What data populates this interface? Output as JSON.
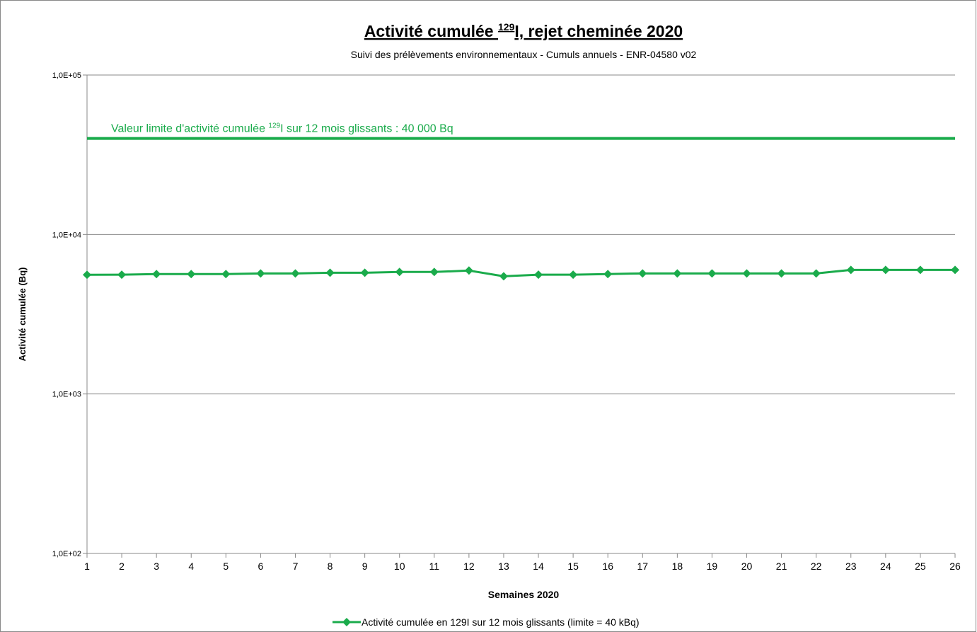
{
  "chart_data": {
    "type": "line",
    "title_parts": [
      "Activité cumulée ",
      "129",
      "I, rejet cheminée 2020"
    ],
    "subtitle": "Suivi des prélèvements environnementaux - Cumuls annuels - ENR-04580 v02",
    "x_label": "Semaines 2020",
    "y_label": "Activité cumulée (Bq)",
    "x": [
      1,
      2,
      3,
      4,
      5,
      6,
      7,
      8,
      9,
      10,
      11,
      12,
      13,
      14,
      15,
      16,
      17,
      18,
      19,
      20,
      21,
      22,
      23,
      24,
      25,
      26
    ],
    "xlim": [
      1,
      26
    ],
    "xticks": [
      1,
      2,
      3,
      4,
      5,
      6,
      7,
      8,
      9,
      10,
      11,
      12,
      13,
      14,
      15,
      16,
      17,
      18,
      19,
      20,
      21,
      22,
      23,
      24,
      25,
      26
    ],
    "ylim": [
      100,
      100000
    ],
    "log_y": true,
    "yticks": [
      {
        "value": 100,
        "label": "1,0E+02"
      },
      {
        "value": 1000,
        "label": "1,0E+03"
      },
      {
        "value": 10000,
        "label": "1,0E+04"
      },
      {
        "value": 100000,
        "label": "1,0E+05"
      }
    ],
    "grid": true,
    "legend": "bottom",
    "series": [
      {
        "name": "Activité cumulée en 129I sur 12 mois glissants (limite = 40 kBq)",
        "color": "#1aab4b",
        "values": [
          5590,
          5600,
          5650,
          5650,
          5650,
          5700,
          5700,
          5760,
          5760,
          5820,
          5820,
          5940,
          5470,
          5600,
          5600,
          5650,
          5700,
          5700,
          5700,
          5700,
          5700,
          5700,
          6000,
          6000,
          6000,
          6000
        ]
      }
    ],
    "limit_line": {
      "value": 40000,
      "color": "#1aab4b",
      "label_parts": [
        "Valeur limite d'activité cumulée ",
        "129",
        "I sur 12 mois  glissants : 40 000 Bq"
      ]
    }
  }
}
